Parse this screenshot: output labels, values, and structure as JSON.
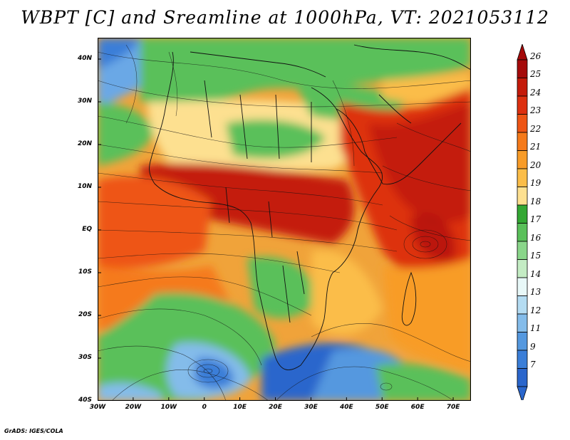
{
  "title": "WBPT [C] and Sreamline at 1000hPa, VT: 2021053112",
  "credit": "GrADS: IGES/COLA",
  "map": {
    "projection": "lat-lon",
    "extent": {
      "lon_min": -30,
      "lon_max": 75,
      "lat_min": -40,
      "lat_max": 45
    },
    "lat_ticks": [
      {
        "value": 40,
        "label": "40N"
      },
      {
        "value": 30,
        "label": "30N"
      },
      {
        "value": 20,
        "label": "20N"
      },
      {
        "value": 10,
        "label": "10N"
      },
      {
        "value": 0,
        "label": "EQ"
      },
      {
        "value": -10,
        "label": "10S"
      },
      {
        "value": -20,
        "label": "20S"
      },
      {
        "value": -30,
        "label": "30S"
      },
      {
        "value": -40,
        "label": "40S"
      }
    ],
    "lon_ticks": [
      {
        "value": -30,
        "label": "30W"
      },
      {
        "value": -20,
        "label": "20W"
      },
      {
        "value": -10,
        "label": "10W"
      },
      {
        "value": 0,
        "label": "0"
      },
      {
        "value": 10,
        "label": "10E"
      },
      {
        "value": 20,
        "label": "20E"
      },
      {
        "value": 30,
        "label": "30E"
      },
      {
        "value": 40,
        "label": "40E"
      },
      {
        "value": 50,
        "label": "50E"
      },
      {
        "value": 60,
        "label": "60E"
      },
      {
        "value": 70,
        "label": "70E"
      }
    ],
    "field": "WBPT",
    "overlay": "streamlines"
  },
  "colorbar": {
    "levels": [
      "26",
      "25",
      "24",
      "23",
      "22",
      "21",
      "20",
      "19",
      "18",
      "17",
      "16",
      "15",
      "14",
      "13",
      "12",
      "11",
      "9",
      "7"
    ],
    "colors": [
      "#a50a0a",
      "#c41a0a",
      "#dd3010",
      "#ee5515",
      "#f57a1a",
      "#f89c28",
      "#fbbd48",
      "#fde090",
      "#33a833",
      "#5ac05a",
      "#8ad68a",
      "#c4ecc4",
      "#e8f8f8",
      "#b4dcf2",
      "#84bcea",
      "#5498df",
      "#3a7ed8",
      "#2a66cc"
    ]
  }
}
